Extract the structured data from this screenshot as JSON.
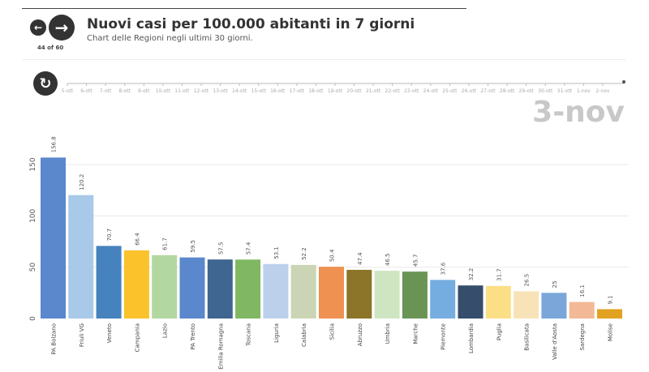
{
  "header": {
    "title": "Nuovi casi per 100.000 abitanti in 7 giorni",
    "subtitle": "Chart delle Regioni negli ultimi 30 giorni.",
    "counter": "44 of 60",
    "prev_icon": "arrow-left-icon",
    "next_icon": "arrow-right-icon",
    "replay_icon": "replay-icon"
  },
  "timeline": {
    "ticks": [
      "5-ott",
      "6-ott",
      "7-ott",
      "8-ott",
      "9-ott",
      "10-ott",
      "11-ott",
      "12-ott",
      "13-ott",
      "14-ott",
      "15-ott",
      "16-ott",
      "17-ott",
      "18-ott",
      "19-ott",
      "20-ott",
      "21-ott",
      "22-ott",
      "23-ott",
      "24-ott",
      "25-ott",
      "26-ott",
      "27-ott",
      "28-ott",
      "29-ott",
      "30-ott",
      "31-ott",
      "1-nov",
      "2-nov"
    ],
    "current": "3-nov"
  },
  "chart_data": {
    "type": "bar",
    "title": "Nuovi casi per 100.000 abitanti in 7 giorni",
    "ylim": [
      0,
      160
    ],
    "yticks": [
      0,
      50,
      100,
      150
    ],
    "categories": [
      "PA Bolzano",
      "Friuli VG",
      "Veneto",
      "Campania",
      "Lazio",
      "PA Trento",
      "Emilia Romagna",
      "Toscana",
      "Liguria",
      "Calabria",
      "Sicilia",
      "Abruzzo",
      "Umbria",
      "Marche",
      "Piemonte",
      "Lombardia",
      "Puglia",
      "Basilicata",
      "Valle d'Aosta",
      "Sardegna",
      "Molise"
    ],
    "values": [
      156.8,
      120.2,
      70.7,
      66.4,
      61.7,
      59.5,
      57.5,
      57.4,
      53.1,
      52.2,
      50.4,
      47.4,
      46.5,
      45.7,
      37.6,
      32.2,
      31.7,
      26.5,
      25,
      16.1,
      9.1
    ],
    "labels": [
      "156.8",
      "120.2",
      "70.7",
      "66.4",
      "61.7",
      "59.5",
      "57.5",
      "57.4",
      "53.1",
      "52.2",
      "50.4",
      "47.4",
      "46.5",
      "45.7",
      "37.6",
      "32.2",
      "31.7",
      "26.5",
      "25",
      "16.1",
      "9.1"
    ],
    "colors": [
      "#5b87cd",
      "#a9c9e8",
      "#4682be",
      "#fbc22c",
      "#b3d7a0",
      "#5b87cd",
      "#3f6690",
      "#80b762",
      "#bcd0eb",
      "#cbd4b4",
      "#ee9151",
      "#8c7428",
      "#cfe5c2",
      "#6a9454",
      "#76ade0",
      "#364d6b",
      "#fbdf86",
      "#f8e3b9",
      "#7aa6da",
      "#f3b996",
      "#e1a121"
    ]
  }
}
